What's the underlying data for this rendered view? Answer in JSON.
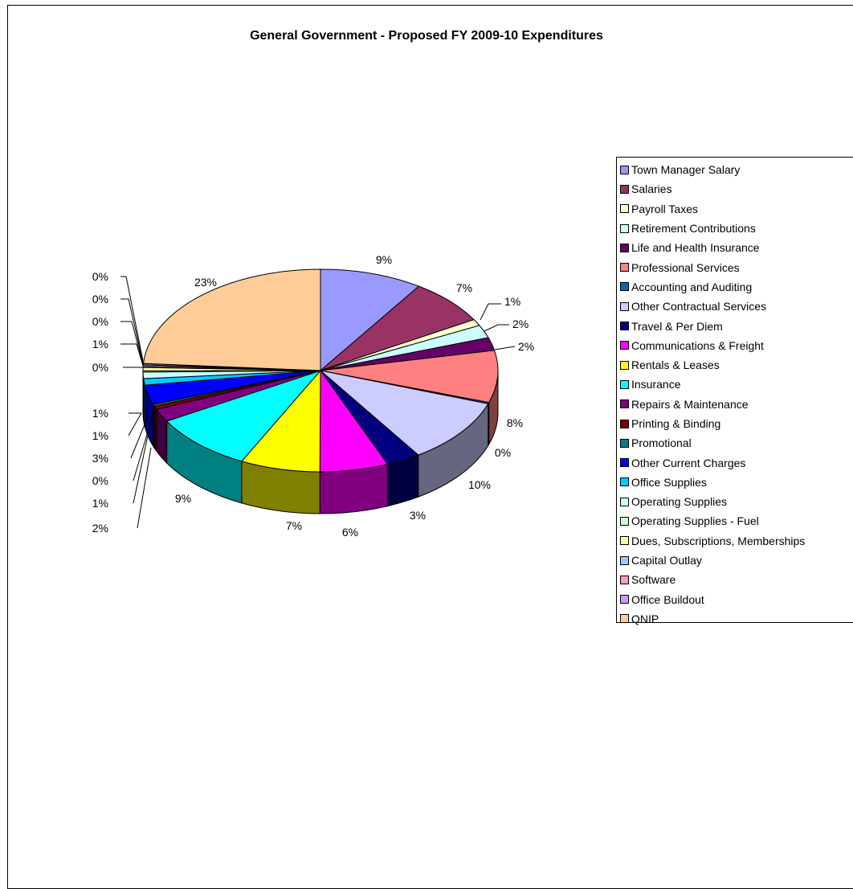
{
  "chart_data": {
    "type": "pie",
    "title": "General Government - Proposed FY 2009-10 Expenditures",
    "legend_position": "right",
    "slices": [
      {
        "name": "Town Manager Salary",
        "value": 9,
        "label": "9%",
        "color": "#9999ff"
      },
      {
        "name": "Salaries",
        "value": 7,
        "label": "7%",
        "color": "#993366"
      },
      {
        "name": "Payroll Taxes",
        "value": 1,
        "label": "1%",
        "color": "#ffffcc"
      },
      {
        "name": "Retirement Contributions",
        "value": 2,
        "label": "2%",
        "color": "#ccffff"
      },
      {
        "name": "Life and Health Insurance",
        "value": 2,
        "label": "2%",
        "color": "#660066"
      },
      {
        "name": "Professional Services",
        "value": 8,
        "label": "8%",
        "color": "#ff8080"
      },
      {
        "name": "Accounting and Auditing",
        "value": 0.2,
        "label": "0%",
        "color": "#0066cc"
      },
      {
        "name": "Other Contractual Services",
        "value": 10,
        "label": "10%",
        "color": "#ccccff"
      },
      {
        "name": "Travel & Per Diem",
        "value": 3,
        "label": "3%",
        "color": "#000080"
      },
      {
        "name": "Communications & Freight",
        "value": 6,
        "label": "6%",
        "color": "#ff00ff"
      },
      {
        "name": "Rentals & Leases",
        "value": 7,
        "label": "7%",
        "color": "#ffff00"
      },
      {
        "name": "Insurance",
        "value": 9,
        "label": "9%",
        "color": "#00ffff"
      },
      {
        "name": "Repairs & Maintenance",
        "value": 2,
        "label": "2%",
        "color": "#800080"
      },
      {
        "name": "Printing & Binding",
        "value": 0.5,
        "label": "1%",
        "color": "#800000"
      },
      {
        "name": "Promotional",
        "value": 0.3,
        "label": "0%",
        "color": "#008080"
      },
      {
        "name": "Other Current Charges",
        "value": 3,
        "label": "3%",
        "color": "#0000ff"
      },
      {
        "name": "Office Supplies",
        "value": 1,
        "label": "1%",
        "color": "#00ccff"
      },
      {
        "name": "Operating Supplies",
        "value": 1,
        "label": "1%",
        "color": "#ccffff"
      },
      {
        "name": "Operating Supplies - Fuel",
        "value": 0.2,
        "label": "0%",
        "color": "#ccffcc"
      },
      {
        "name": "Dues, Subscriptions, Memberships",
        "value": 0.5,
        "label": "1%",
        "color": "#ffff99"
      },
      {
        "name": "Capital Outlay",
        "value": 0.2,
        "label": "0%",
        "color": "#99ccff"
      },
      {
        "name": "Software",
        "value": 0.2,
        "label": "0%",
        "color": "#ff99cc"
      },
      {
        "name": "Office Buildout",
        "value": 0.2,
        "label": "0%",
        "color": "#cc99ff"
      },
      {
        "name": "QNIP",
        "value": 23,
        "label": "23%",
        "color": "#ffcc99"
      }
    ]
  }
}
